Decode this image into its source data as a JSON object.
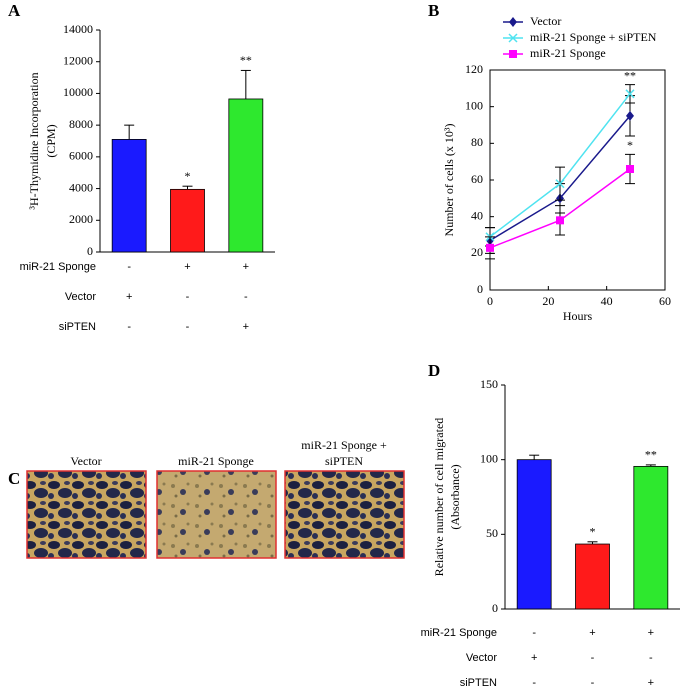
{
  "chart_data": [
    {
      "type": "bar",
      "label": "A",
      "ylabel": [
        "³H-Thymidine Incorporation",
        "(CPM)"
      ],
      "categories": [
        null,
        null,
        null
      ],
      "values": [
        7100,
        3950,
        9650
      ],
      "errors": [
        900,
        200,
        1800
      ],
      "colors": [
        "#1a1aff",
        "#ff1a1a",
        "#2ee82e"
      ],
      "annotations": [
        null,
        "*",
        "**"
      ],
      "ylim": [
        0,
        14000
      ],
      "yticks": [
        0,
        2000,
        4000,
        6000,
        8000,
        10000,
        12000,
        14000
      ],
      "conditions": [
        {
          "label": "miR-21 Sponge",
          "values": [
            "-",
            "+",
            "+"
          ]
        },
        {
          "label": "Vector",
          "values": [
            "+",
            "-",
            "-"
          ]
        },
        {
          "label": "siPTEN",
          "values": [
            "-",
            "-",
            "+"
          ]
        }
      ]
    },
    {
      "type": "line",
      "label": "B",
      "ylabel": "Number of cells (x 10³)",
      "xlabel": "Hours",
      "x": [
        0,
        24,
        48
      ],
      "xlim": [
        0,
        60
      ],
      "xticks": [
        0,
        20,
        40,
        60
      ],
      "ylim": [
        0,
        120
      ],
      "yticks": [
        0,
        20,
        40,
        60,
        80,
        100,
        120
      ],
      "series": [
        {
          "name": "Vector",
          "color": "#1a1a8c",
          "marker": "diamond",
          "values": [
            27,
            50,
            95
          ],
          "errors": [
            7,
            8,
            11
          ],
          "annotations": [
            null,
            null,
            null
          ]
        },
        {
          "name": "miR-21 Sponge + siPTEN",
          "color": "#4fe3f0",
          "marker": "x",
          "values": [
            29,
            58,
            107
          ],
          "errors": [
            5,
            9,
            5
          ],
          "annotations": [
            null,
            null,
            "**"
          ]
        },
        {
          "name": "miR-21 Sponge",
          "color": "#ff00ff",
          "marker": "square",
          "values": [
            23,
            38,
            66
          ],
          "errors": [
            6,
            8,
            8
          ],
          "annotations": [
            null,
            null,
            "*"
          ]
        }
      ]
    },
    {
      "type": "bar",
      "label": "D",
      "ylabel": [
        "Relative number of cell migrated",
        "(Absorbance)"
      ],
      "categories": [
        null,
        null,
        null
      ],
      "values": [
        100,
        43.5,
        95.5
      ],
      "errors": [
        3,
        1.5,
        1
      ],
      "colors": [
        "#1a1aff",
        "#ff1a1a",
        "#2ee82e"
      ],
      "annotations": [
        null,
        "*",
        "**"
      ],
      "ylim": [
        0,
        150
      ],
      "yticks": [
        0,
        50,
        100,
        150
      ],
      "conditions": [
        {
          "label": "miR-21 Sponge",
          "values": [
            "-",
            "+",
            "+"
          ]
        },
        {
          "label": "Vector",
          "values": [
            "+",
            "-",
            "-"
          ]
        },
        {
          "label": "siPTEN",
          "values": [
            "-",
            "-",
            "+"
          ]
        }
      ]
    }
  ],
  "panel_c": {
    "label": "C",
    "images": [
      {
        "title": [
          "Vector"
        ]
      },
      {
        "title": [
          "miR-21 Sponge"
        ]
      },
      {
        "title": [
          "miR-21 Sponge +",
          "siPTEN"
        ]
      }
    ]
  }
}
